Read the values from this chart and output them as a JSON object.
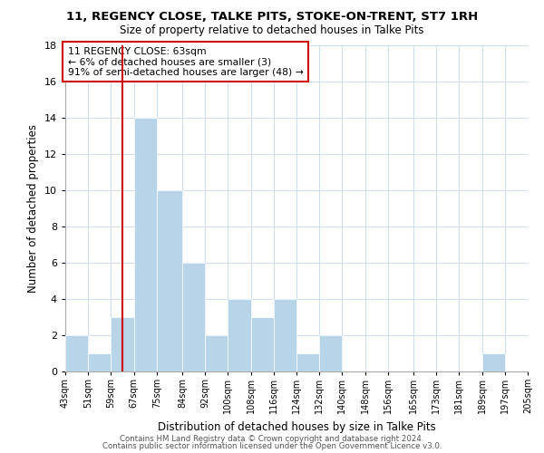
{
  "title": "11, REGENCY CLOSE, TALKE PITS, STOKE-ON-TRENT, ST7 1RH",
  "subtitle": "Size of property relative to detached houses in Talke Pits",
  "xlabel": "Distribution of detached houses by size in Talke Pits",
  "ylabel": "Number of detached properties",
  "bin_edges": [
    43,
    51,
    59,
    67,
    75,
    84,
    92,
    100,
    108,
    116,
    124,
    132,
    140,
    148,
    156,
    165,
    173,
    181,
    189,
    197,
    205
  ],
  "counts": [
    2,
    1,
    3,
    14,
    10,
    6,
    2,
    4,
    3,
    4,
    1,
    2,
    0,
    0,
    0,
    0,
    0,
    0,
    1,
    0
  ],
  "bar_color": "#b8d4e8",
  "property_line_x": 63,
  "property_line_color": "#cc0000",
  "annotation_box_color": "#cc0000",
  "annotation_text": "11 REGENCY CLOSE: 63sqm\n← 6% of detached houses are smaller (3)\n91% of semi-detached houses are larger (48) →",
  "ylim": [
    0,
    18
  ],
  "yticks": [
    0,
    2,
    4,
    6,
    8,
    10,
    12,
    14,
    16,
    18
  ],
  "x_tick_labels": [
    "43sqm",
    "51sqm",
    "59sqm",
    "67sqm",
    "75sqm",
    "84sqm",
    "92sqm",
    "100sqm",
    "108sqm",
    "116sqm",
    "124sqm",
    "132sqm",
    "140sqm",
    "148sqm",
    "156sqm",
    "165sqm",
    "173sqm",
    "181sqm",
    "189sqm",
    "197sqm",
    "205sqm"
  ],
  "background_color": "#ffffff",
  "grid_color": "#d0dff0",
  "footer_line1": "Contains HM Land Registry data © Crown copyright and database right 2024.",
  "footer_line2": "Contains public sector information licensed under the Open Government Licence v3.0."
}
